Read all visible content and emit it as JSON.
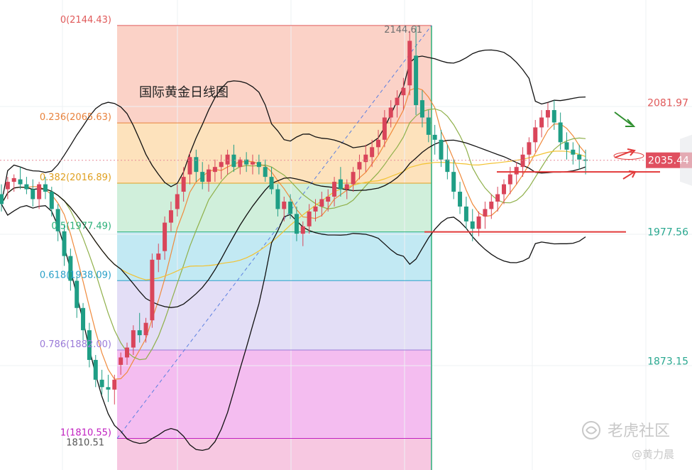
{
  "chart_data": {
    "type": "candlestick",
    "title": "国际黄金日线图",
    "ylim": [
      1785,
      2165
    ],
    "fibonacci": {
      "high": 2144.43,
      "low": 1810.55,
      "levels": [
        {
          "ratio": 0,
          "value": 2144.43,
          "label": "0(2144.43)",
          "color": "#e05a5a",
          "fill": "#fbd0c4"
        },
        {
          "ratio": 0.236,
          "value": 2065.63,
          "label": "0.236(2065.63)",
          "color": "#e8823c",
          "fill": "#fde0b8"
        },
        {
          "ratio": 0.382,
          "value": 2016.89,
          "label": "0.382(2016.89)",
          "color": "#e0a020",
          "fill": "#cdeed9"
        },
        {
          "ratio": 0.5,
          "value": 1977.49,
          "label": "0.5(1977.49)",
          "color": "#2bb07a",
          "fill": "#bfe8f2"
        },
        {
          "ratio": 0.618,
          "value": 1938.09,
          "label": "0.618(1938.09)",
          "color": "#2aa0c8",
          "fill": "#e2dcf5"
        },
        {
          "ratio": 0.786,
          "value": 1882.0,
          "label": "0.786(1882.00)",
          "color": "#9a7ad8",
          "fill": "#f3b9ef"
        },
        {
          "ratio": 1,
          "value": 1810.55,
          "label": "1(1810.55)",
          "color": "#c020c0",
          "fill": "#f7c5df"
        }
      ],
      "swing_high_label": "2144.61",
      "swing_low_label": "1810.51"
    },
    "price_axis_labels": [
      {
        "value": 2081.97,
        "text": "2081.97",
        "color": "#e05a5a"
      },
      {
        "value": 1977.56,
        "text": "1977.56",
        "color": "#2aa890"
      },
      {
        "value": 1873.15,
        "text": "1873.15",
        "color": "#2aa890"
      }
    ],
    "current_price": {
      "value": 2035.44,
      "text": "2035.44",
      "color": "#e04f5f"
    },
    "horizontal_lines": [
      2026,
      1977.5
    ],
    "candles": [
      [
        2008,
        2016,
        1994,
        2000
      ],
      [
        2012,
        2022,
        2004,
        2018
      ],
      [
        2018,
        2024,
        2010,
        2021
      ],
      [
        2020,
        2030,
        2012,
        2016
      ],
      [
        2016,
        2022,
        2008,
        2012
      ],
      [
        2012,
        2020,
        1998,
        2004
      ],
      [
        2004,
        2018,
        1996,
        2016
      ],
      [
        2016,
        2022,
        2004,
        2010
      ],
      [
        2010,
        2014,
        1990,
        1996
      ],
      [
        1996,
        2000,
        1970,
        1978
      ],
      [
        1978,
        1984,
        1950,
        1958
      ],
      [
        1958,
        1964,
        1930,
        1938
      ],
      [
        1938,
        1942,
        1908,
        1916
      ],
      [
        1916,
        1920,
        1890,
        1898
      ],
      [
        1898,
        1904,
        1868,
        1874
      ],
      [
        1874,
        1878,
        1852,
        1858
      ],
      [
        1858,
        1866,
        1846,
        1852
      ],
      [
        1852,
        1862,
        1840,
        1850
      ],
      [
        1850,
        1862,
        1838,
        1858
      ],
      [
        1870,
        1880,
        1862,
        1876
      ],
      [
        1876,
        1888,
        1870,
        1884
      ],
      [
        1884,
        1902,
        1878,
        1898
      ],
      [
        1898,
        1912,
        1888,
        1894
      ],
      [
        1894,
        1908,
        1888,
        1904
      ],
      [
        1906,
        1960,
        1900,
        1955
      ],
      [
        1955,
        1968,
        1945,
        1960
      ],
      [
        1962,
        1990,
        1955,
        1985
      ],
      [
        1985,
        2002,
        1978,
        1995
      ],
      [
        1996,
        2016,
        1990,
        2008
      ],
      [
        2010,
        2030,
        2002,
        2022
      ],
      [
        2024,
        2042,
        2016,
        2038
      ],
      [
        2038,
        2044,
        2018,
        2026
      ],
      [
        2026,
        2034,
        2012,
        2018
      ],
      [
        2018,
        2032,
        2010,
        2028
      ],
      [
        2026,
        2036,
        2018,
        2030
      ],
      [
        2030,
        2040,
        2020,
        2034
      ],
      [
        2032,
        2044,
        2024,
        2040
      ],
      [
        2040,
        2048,
        2026,
        2030
      ],
      [
        2030,
        2038,
        2024,
        2036
      ],
      [
        2036,
        2042,
        2026,
        2032
      ],
      [
        2032,
        2040,
        2024,
        2034
      ],
      [
        2034,
        2040,
        2024,
        2030
      ],
      [
        2030,
        2036,
        2018,
        2022
      ],
      [
        2022,
        2030,
        2008,
        2012
      ],
      [
        2012,
        2016,
        1990,
        1996
      ],
      [
        1996,
        2006,
        1986,
        2002
      ],
      [
        2002,
        2008,
        1988,
        1992
      ],
      [
        1992,
        1998,
        1970,
        1976
      ],
      [
        1976,
        1986,
        1966,
        1982
      ],
      [
        1982,
        2000,
        1976,
        1994
      ],
      [
        1994,
        2004,
        1986,
        1998
      ],
      [
        1998,
        2010,
        1990,
        2004
      ],
      [
        2002,
        2012,
        1994,
        2006
      ],
      [
        2006,
        2022,
        1998,
        2018
      ],
      [
        2020,
        2030,
        2006,
        2012
      ],
      [
        2012,
        2020,
        2004,
        2016
      ],
      [
        2016,
        2030,
        2010,
        2026
      ],
      [
        2028,
        2040,
        2020,
        2034
      ],
      [
        2034,
        2048,
        2026,
        2040
      ],
      [
        2038,
        2052,
        2030,
        2046
      ],
      [
        2046,
        2060,
        2040,
        2052
      ],
      [
        2052,
        2076,
        2046,
        2070
      ],
      [
        2070,
        2084,
        2062,
        2078
      ],
      [
        2080,
        2092,
        2070,
        2086
      ],
      [
        2088,
        2102,
        2076,
        2094
      ],
      [
        2096,
        2140,
        2088,
        2132
      ],
      [
        2120,
        2144,
        2072,
        2080
      ],
      [
        2084,
        2092,
        2062,
        2070
      ],
      [
        2070,
        2076,
        2050,
        2056
      ],
      [
        2056,
        2064,
        2040,
        2052
      ],
      [
        2052,
        2060,
        2030,
        2036
      ],
      [
        2036,
        2048,
        2020,
        2026
      ],
      [
        2026,
        2036,
        2004,
        2010
      ],
      [
        2010,
        2018,
        1992,
        1998
      ],
      [
        1998,
        2006,
        1980,
        1986
      ],
      [
        1986,
        1996,
        1970,
        1980
      ],
      [
        1980,
        1994,
        1974,
        1990
      ],
      [
        1990,
        2002,
        1980,
        1996
      ],
      [
        1996,
        2008,
        1988,
        2002
      ],
      [
        2002,
        2014,
        1994,
        2008
      ],
      [
        2008,
        2020,
        2000,
        2016
      ],
      [
        2016,
        2030,
        2008,
        2024
      ],
      [
        2024,
        2034,
        2016,
        2030
      ],
      [
        2030,
        2046,
        2022,
        2040
      ],
      [
        2040,
        2054,
        2032,
        2050
      ],
      [
        2050,
        2068,
        2042,
        2062
      ],
      [
        2062,
        2076,
        2054,
        2070
      ],
      [
        2070,
        2082,
        2062,
        2076
      ],
      [
        2076,
        2084,
        2060,
        2066
      ],
      [
        2066,
        2074,
        2044,
        2050
      ],
      [
        2050,
        2058,
        2036,
        2044
      ],
      [
        2044,
        2050,
        2032,
        2040
      ],
      [
        2040,
        2048,
        2028,
        2036
      ],
      [
        2036,
        2044,
        2024,
        2035
      ]
    ]
  },
  "watermark": {
    "brand": "老虎社区",
    "author": "@黄力晨"
  }
}
